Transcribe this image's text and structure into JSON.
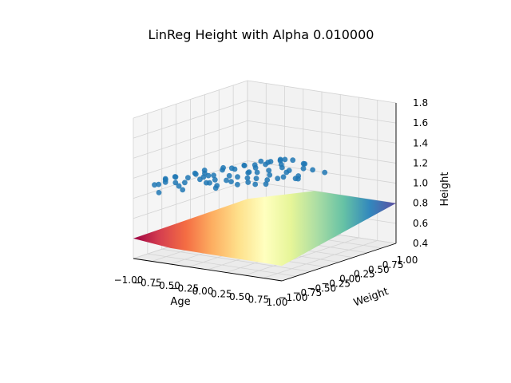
{
  "chart_data": {
    "type": "scatter",
    "projection": "3d",
    "title": "LinReg Height with Alpha 0.010000",
    "xlabel": "Age",
    "ylabel": "Weight",
    "zlabel": "Height",
    "xlim": [
      -1.0,
      1.0
    ],
    "ylim": [
      -1.0,
      1.0
    ],
    "zlim": [
      0.4,
      1.8
    ],
    "x_ticks": [
      "−1.00",
      "−0.75",
      "−0.50",
      "−0.25",
      "0.00",
      "0.25",
      "0.50",
      "0.75",
      "1.00"
    ],
    "y_ticks": [
      "−1.00",
      "−0.75",
      "−0.50",
      "−0.25",
      "0.00",
      "0.25",
      "0.50",
      "0.75",
      "1.00"
    ],
    "z_ticks": [
      "0.4",
      "0.6",
      "0.8",
      "1.0",
      "1.2",
      "1.4",
      "1.6",
      "1.8"
    ],
    "grid": true,
    "marker_color": "#1f77b4",
    "surface_colormap": [
      "#9e0142",
      "#d53e4f",
      "#f46d43",
      "#fdae61",
      "#fee08b",
      "#ffffbf",
      "#e6f598",
      "#abdda4",
      "#66c2a5",
      "#3288bd",
      "#5e4fa2"
    ],
    "points": [
      {
        "x": -0.99,
        "y": -0.57,
        "z": 1.06
      },
      {
        "x": -0.93,
        "y": -0.72,
        "z": 1.09
      },
      {
        "x": -0.89,
        "y": -0.58,
        "z": 1.12
      },
      {
        "x": -0.86,
        "y": -0.62,
        "z": 1.14
      },
      {
        "x": -0.84,
        "y": -0.76,
        "z": 1.03
      },
      {
        "x": -0.8,
        "y": -0.53,
        "z": 1.15
      },
      {
        "x": -0.77,
        "y": -0.56,
        "z": 1.1
      },
      {
        "x": -0.73,
        "y": -0.61,
        "z": 1.17
      },
      {
        "x": -0.71,
        "y": -0.42,
        "z": 1.13
      },
      {
        "x": -0.67,
        "y": -0.63,
        "z": 1.09
      },
      {
        "x": -0.63,
        "y": -0.58,
        "z": 1.12
      },
      {
        "x": -0.6,
        "y": -0.44,
        "z": 1.19
      },
      {
        "x": -0.56,
        "y": -0.71,
        "z": 1.08
      },
      {
        "x": -0.55,
        "y": -0.27,
        "z": 1.14
      },
      {
        "x": -0.51,
        "y": -0.39,
        "z": 1.22
      },
      {
        "x": -0.47,
        "y": -0.46,
        "z": 1.17
      },
      {
        "x": -0.43,
        "y": -0.31,
        "z": 1.12
      },
      {
        "x": -0.4,
        "y": -0.53,
        "z": 1.23
      },
      {
        "x": -0.38,
        "y": -0.64,
        "z": 1.19
      },
      {
        "x": -0.34,
        "y": -0.58,
        "z": 1.15
      },
      {
        "x": -0.31,
        "y": -0.49,
        "z": 1.21
      },
      {
        "x": -0.27,
        "y": -0.39,
        "z": 1.25
      },
      {
        "x": -0.25,
        "y": -0.64,
        "z": 1.17
      },
      {
        "x": -0.22,
        "y": -0.55,
        "z": 1.13
      },
      {
        "x": -0.19,
        "y": -0.61,
        "z": 1.12
      },
      {
        "x": -0.15,
        "y": -0.33,
        "z": 1.26
      },
      {
        "x": -0.12,
        "y": -0.42,
        "z": 1.29
      },
      {
        "x": -0.1,
        "y": -0.49,
        "z": 1.23
      },
      {
        "x": -0.06,
        "y": -0.51,
        "z": 1.18
      },
      {
        "x": -0.02,
        "y": -0.45,
        "z": 1.22
      },
      {
        "x": 0.0,
        "y": -0.36,
        "z": 1.32
      },
      {
        "x": 0.03,
        "y": -0.71,
        "z": 1.24
      },
      {
        "x": 0.06,
        "y": -0.25,
        "z": 1.31
      },
      {
        "x": 0.09,
        "y": -0.39,
        "z": 1.27
      },
      {
        "x": 0.11,
        "y": -0.62,
        "z": 1.19
      },
      {
        "x": 0.13,
        "y": -0.46,
        "z": 1.28
      },
      {
        "x": 0.16,
        "y": -0.51,
        "z": 1.24
      },
      {
        "x": 0.18,
        "y": -0.3,
        "z": 1.37
      },
      {
        "x": 0.2,
        "y": -0.42,
        "z": 1.33
      },
      {
        "x": 0.23,
        "y": -0.59,
        "z": 1.22
      },
      {
        "x": 0.26,
        "y": -0.47,
        "z": 1.3
      },
      {
        "x": 0.28,
        "y": -0.35,
        "z": 1.36
      },
      {
        "x": 0.31,
        "y": -0.55,
        "z": 1.26
      },
      {
        "x": 0.34,
        "y": -0.37,
        "z": 1.31
      },
      {
        "x": 0.36,
        "y": -0.41,
        "z": 1.4
      },
      {
        "x": 0.38,
        "y": -0.66,
        "z": 1.23
      },
      {
        "x": 0.4,
        "y": -0.23,
        "z": 1.35
      },
      {
        "x": 0.42,
        "y": -0.46,
        "z": 1.29
      },
      {
        "x": 0.45,
        "y": -0.31,
        "z": 1.42
      },
      {
        "x": 0.48,
        "y": -0.58,
        "z": 1.27
      },
      {
        "x": 0.51,
        "y": -0.39,
        "z": 1.43
      },
      {
        "x": 0.53,
        "y": -0.26,
        "z": 1.31
      },
      {
        "x": 0.55,
        "y": -0.36,
        "z": 1.44
      },
      {
        "x": 0.58,
        "y": -0.45,
        "z": 1.38
      },
      {
        "x": 0.6,
        "y": -0.19,
        "z": 1.25
      },
      {
        "x": 0.62,
        "y": -0.58,
        "z": 1.3
      },
      {
        "x": 0.64,
        "y": -0.34,
        "z": 1.44
      },
      {
        "x": 0.67,
        "y": -0.49,
        "z": 1.35
      },
      {
        "x": 0.7,
        "y": -0.23,
        "z": 1.39
      },
      {
        "x": 0.73,
        "y": -0.41,
        "z": 1.28
      },
      {
        "x": 0.77,
        "y": -0.3,
        "z": 1.41
      },
      {
        "x": 0.82,
        "y": -0.48,
        "z": 1.3
      },
      {
        "x": 0.9,
        "y": -0.33,
        "z": 1.37
      },
      {
        "x": 0.97,
        "y": -0.21,
        "z": 1.33
      },
      {
        "x": -0.96,
        "y": -0.49,
        "z": 1.07
      },
      {
        "x": -0.65,
        "y": -0.36,
        "z": 1.16
      },
      {
        "x": -0.35,
        "y": -0.27,
        "z": 1.24
      },
      {
        "x": -0.05,
        "y": -0.29,
        "z": 1.3
      },
      {
        "x": 0.25,
        "y": -0.22,
        "z": 1.36
      },
      {
        "x": 0.5,
        "y": -0.63,
        "z": 1.24
      },
      {
        "x": 0.66,
        "y": -0.53,
        "z": 1.31
      },
      {
        "x": 0.86,
        "y": -0.44,
        "z": 1.4
      }
    ]
  }
}
